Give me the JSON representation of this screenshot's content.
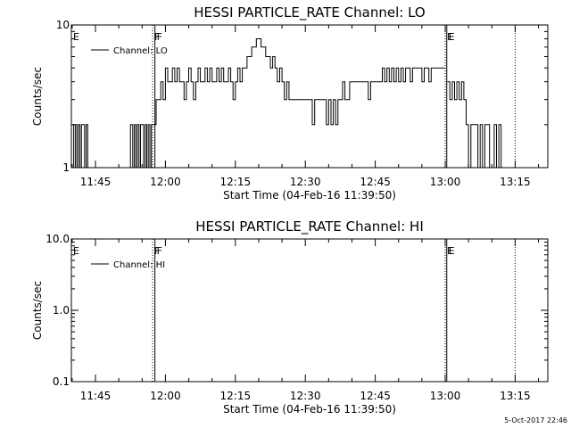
{
  "chart_data": [
    {
      "type": "line",
      "title": "HESSI PARTICLE_RATE Channel: LO",
      "xlabel": "Start Time (04-Feb-16 11:39:50)",
      "ylabel": "Counts/sec",
      "y_scale": "log",
      "ylim": [
        1,
        10
      ],
      "ytick_labels": [
        "1",
        "10"
      ],
      "ytick_values": [
        1,
        10
      ],
      "xlim": [
        "11:39:50",
        "13:22:00"
      ],
      "xtick_labels": [
        "11:45",
        "12:00",
        "12:15",
        "12:30",
        "12:45",
        "13:00",
        "13:15"
      ],
      "grid": false,
      "legend": {
        "position": "top-left",
        "entries": [
          "Channel: LO"
        ]
      },
      "flags": [
        {
          "label": "E",
          "time": "11:39:50",
          "style": "none"
        },
        {
          "label": "F",
          "time": "11:57:15",
          "style": "dotted"
        },
        {
          "label": "F",
          "time": "11:57:45",
          "style": "solid"
        },
        {
          "label": "E",
          "time": "13:00:00",
          "style": "dotted"
        },
        {
          "label": "E",
          "time": "13:00:20",
          "style": "solid"
        },
        {
          "label": "",
          "time": "13:15:00",
          "style": "dotted"
        }
      ],
      "series": [
        {
          "name": "Channel: LO",
          "segments": [
            [
              [
                "11:40:00",
                2
              ],
              [
                "11:40:20",
                1
              ],
              [
                "11:40:40",
                2
              ],
              [
                "11:41:00",
                1
              ],
              [
                "11:41:20",
                2
              ],
              [
                "11:41:40",
                1
              ],
              [
                "11:42:00",
                2
              ],
              [
                "11:42:20",
                2
              ],
              [
                "11:42:40",
                1
              ],
              [
                "11:43:00",
                2
              ],
              [
                "11:43:20",
                1
              ],
              [
                "11:43:40",
                1
              ],
              [
                "11:44:00",
                1
              ],
              [
                "11:45:00",
                1
              ],
              [
                "11:46:00",
                1
              ],
              [
                "11:47:00",
                1
              ],
              [
                "11:48:00",
                1
              ],
              [
                "11:49:00",
                1
              ],
              [
                "11:50:00",
                1
              ],
              [
                "11:51:00",
                1
              ],
              [
                "11:52:00",
                1
              ],
              [
                "11:52:30",
                2
              ],
              [
                "11:53:00",
                1
              ],
              [
                "11:53:20",
                2
              ],
              [
                "11:53:40",
                1
              ],
              [
                "11:54:00",
                2
              ],
              [
                "11:54:20",
                1
              ],
              [
                "11:54:40",
                2
              ],
              [
                "11:55:00",
                2
              ],
              [
                "11:55:20",
                1
              ],
              [
                "11:55:40",
                2
              ],
              [
                "11:56:00",
                1
              ],
              [
                "11:56:20",
                2
              ],
              [
                "11:56:40",
                1
              ],
              [
                "11:57:00",
                2
              ],
              [
                "11:57:30",
                2
              ],
              [
                "11:58:00",
                3
              ],
              [
                "11:58:30",
                3
              ],
              [
                "11:59:00",
                4
              ],
              [
                "11:59:30",
                3
              ],
              [
                "12:00:00",
                5
              ],
              [
                "12:00:30",
                4
              ],
              [
                "12:01:00",
                4
              ],
              [
                "12:01:30",
                5
              ],
              [
                "12:02:00",
                4
              ],
              [
                "12:02:30",
                5
              ],
              [
                "12:03:00",
                4
              ],
              [
                "12:03:30",
                4
              ],
              [
                "12:04:00",
                3
              ],
              [
                "12:04:30",
                4
              ],
              [
                "12:05:00",
                5
              ],
              [
                "12:05:30",
                4
              ],
              [
                "12:06:00",
                3
              ],
              [
                "12:06:30",
                4
              ],
              [
                "12:07:00",
                5
              ],
              [
                "12:07:30",
                4
              ],
              [
                "12:08:00",
                4
              ],
              [
                "12:08:30",
                5
              ],
              [
                "12:09:00",
                4
              ],
              [
                "12:09:30",
                5
              ],
              [
                "12:10:00",
                4
              ],
              [
                "12:10:30",
                4
              ],
              [
                "12:11:00",
                5
              ],
              [
                "12:11:30",
                4
              ],
              [
                "12:12:00",
                5
              ],
              [
                "12:12:30",
                4
              ],
              [
                "12:13:00",
                4
              ],
              [
                "12:13:30",
                5
              ],
              [
                "12:14:00",
                4
              ],
              [
                "12:14:30",
                3
              ],
              [
                "12:15:00",
                4
              ],
              [
                "12:15:30",
                5
              ],
              [
                "12:16:00",
                4
              ],
              [
                "12:16:30",
                5
              ],
              [
                "12:17:00",
                5
              ],
              [
                "12:17:30",
                6
              ],
              [
                "12:18:00",
                6
              ],
              [
                "12:18:30",
                7
              ],
              [
                "12:19:00",
                7
              ],
              [
                "12:19:30",
                8
              ],
              [
                "12:20:00",
                8
              ],
              [
                "12:20:30",
                7
              ],
              [
                "12:21:00",
                7
              ],
              [
                "12:21:30",
                6
              ],
              [
                "12:22:00",
                6
              ],
              [
                "12:22:30",
                5
              ],
              [
                "12:23:00",
                6
              ],
              [
                "12:23:30",
                5
              ],
              [
                "12:24:00",
                4
              ],
              [
                "12:24:30",
                5
              ],
              [
                "12:25:00",
                4
              ],
              [
                "12:25:30",
                3
              ],
              [
                "12:26:00",
                4
              ],
              [
                "12:26:30",
                3
              ],
              [
                "12:27:00",
                3
              ],
              [
                "12:27:30",
                3
              ],
              [
                "12:28:00",
                3
              ],
              [
                "12:28:30",
                3
              ],
              [
                "12:29:00",
                3
              ],
              [
                "12:29:30",
                3
              ],
              [
                "12:30:00",
                3
              ],
              [
                "12:30:30",
                3
              ],
              [
                "12:31:00",
                3
              ],
              [
                "12:31:30",
                2
              ],
              [
                "12:32:00",
                3
              ],
              [
                "12:32:30",
                3
              ],
              [
                "12:33:00",
                3
              ],
              [
                "12:33:30",
                3
              ],
              [
                "12:34:00",
                3
              ],
              [
                "12:34:30",
                2
              ],
              [
                "12:35:00",
                3
              ],
              [
                "12:35:30",
                2
              ],
              [
                "12:36:00",
                3
              ],
              [
                "12:36:30",
                2
              ],
              [
                "12:37:00",
                3
              ],
              [
                "12:37:30",
                3
              ],
              [
                "12:38:00",
                4
              ],
              [
                "12:38:30",
                3
              ],
              [
                "12:39:00",
                3
              ],
              [
                "12:39:30",
                4
              ],
              [
                "12:40:00",
                4
              ],
              [
                "12:40:30",
                4
              ],
              [
                "12:41:00",
                4
              ],
              [
                "12:41:30",
                4
              ],
              [
                "12:42:00",
                4
              ],
              [
                "12:42:30",
                4
              ],
              [
                "12:43:00",
                4
              ],
              [
                "12:43:30",
                3
              ],
              [
                "12:44:00",
                4
              ],
              [
                "12:44:30",
                4
              ],
              [
                "12:45:00",
                4
              ],
              [
                "12:45:30",
                4
              ],
              [
                "12:46:00",
                4
              ],
              [
                "12:46:30",
                5
              ],
              [
                "12:47:00",
                4
              ],
              [
                "12:47:30",
                5
              ],
              [
                "12:48:00",
                4
              ],
              [
                "12:48:30",
                5
              ],
              [
                "12:49:00",
                4
              ],
              [
                "12:49:30",
                5
              ],
              [
                "12:50:00",
                4
              ],
              [
                "12:50:30",
                5
              ],
              [
                "12:51:00",
                4
              ],
              [
                "12:51:30",
                5
              ],
              [
                "12:52:00",
                5
              ],
              [
                "12:52:30",
                4
              ],
              [
                "12:53:00",
                5
              ],
              [
                "12:53:30",
                5
              ],
              [
                "12:54:00",
                5
              ],
              [
                "12:54:30",
                5
              ],
              [
                "12:55:00",
                4
              ],
              [
                "12:55:30",
                5
              ],
              [
                "12:56:00",
                5
              ],
              [
                "12:56:30",
                4
              ],
              [
                "12:57:00",
                5
              ],
              [
                "12:57:30",
                5
              ],
              [
                "12:58:00",
                5
              ],
              [
                "12:58:30",
                5
              ],
              [
                "12:59:00",
                5
              ],
              [
                "12:59:30",
                5
              ]
            ],
            [
              [
                "13:00:30",
                4
              ],
              [
                "13:01:00",
                3
              ],
              [
                "13:01:30",
                4
              ],
              [
                "13:02:00",
                3
              ],
              [
                "13:02:30",
                4
              ],
              [
                "13:03:00",
                3
              ],
              [
                "13:03:30",
                4
              ],
              [
                "13:04:00",
                3
              ],
              [
                "13:04:30",
                2
              ],
              [
                "13:05:00",
                1
              ],
              [
                "13:05:30",
                2
              ],
              [
                "13:06:00",
                2
              ],
              [
                "13:06:30",
                2
              ],
              [
                "13:07:00",
                1
              ],
              [
                "13:07:30",
                2
              ],
              [
                "13:08:00",
                1
              ],
              [
                "13:08:30",
                2
              ],
              [
                "13:09:00",
                2
              ],
              [
                "13:09:30",
                1
              ],
              [
                "13:10:00",
                1
              ],
              [
                "13:10:30",
                2
              ],
              [
                "13:11:00",
                1
              ],
              [
                "13:11:30",
                2
              ],
              [
                "13:12:00",
                1
              ],
              [
                "13:12:30",
                1
              ]
            ]
          ]
        }
      ]
    },
    {
      "type": "line",
      "title": "HESSI PARTICLE_RATE Channel: HI",
      "xlabel": "Start Time (04-Feb-16 11:39:50)",
      "ylabel": "Counts/sec",
      "y_scale": "log",
      "ylim": [
        0.1,
        10
      ],
      "ytick_labels": [
        "0.1",
        "1.0",
        "10.0"
      ],
      "ytick_values": [
        0.1,
        1,
        10
      ],
      "xlim": [
        "11:39:50",
        "13:22:00"
      ],
      "xtick_labels": [
        "11:45",
        "12:00",
        "12:15",
        "12:30",
        "12:45",
        "13:00",
        "13:15"
      ],
      "grid": false,
      "legend": {
        "position": "top-left",
        "entries": [
          "Channel: HI"
        ]
      },
      "flags": [
        {
          "label": "E",
          "time": "11:39:50",
          "style": "none"
        },
        {
          "label": "F",
          "time": "11:57:15",
          "style": "dotted"
        },
        {
          "label": "F",
          "time": "11:57:45",
          "style": "solid"
        },
        {
          "label": "E",
          "time": "13:00:00",
          "style": "dotted"
        },
        {
          "label": "E",
          "time": "13:00:20",
          "style": "solid"
        },
        {
          "label": "",
          "time": "13:15:00",
          "style": "dotted"
        }
      ],
      "series": [
        {
          "name": "Channel: HI",
          "segments": []
        }
      ]
    }
  ],
  "footer": {
    "timestamp": "5-Oct-2017 22:46"
  }
}
